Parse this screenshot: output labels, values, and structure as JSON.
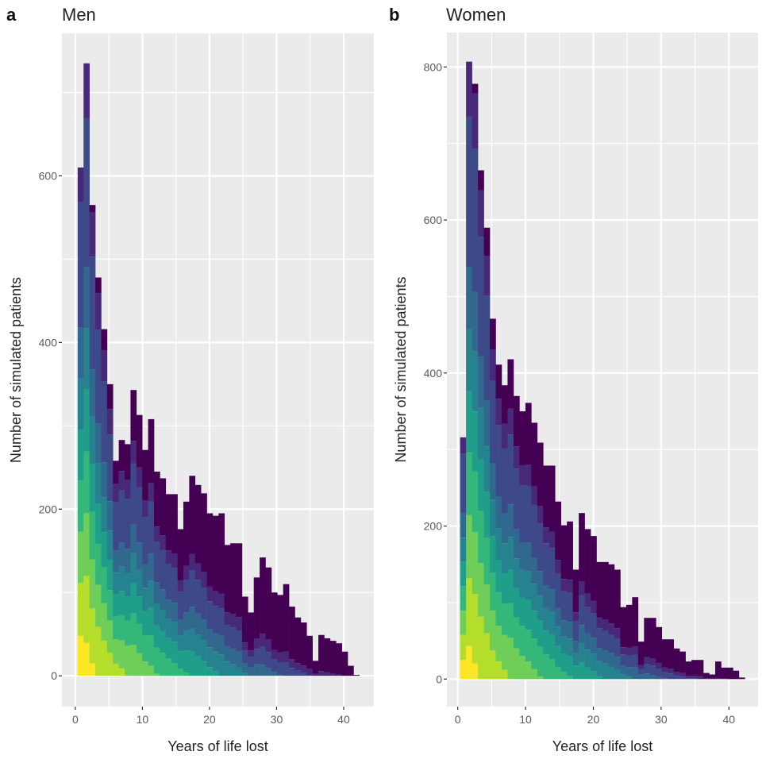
{
  "figure": {
    "background": "#ffffff",
    "panel_background": "#ebebeb",
    "grid_color": "#ffffff",
    "tick_color": "#333333"
  },
  "chart_data": [
    {
      "type": "bar",
      "subtype": "stacked-histogram",
      "panel_tag": "a",
      "title": "Men",
      "xlabel": "Years of life lost",
      "ylabel": "Number of simulated patients",
      "xlim": [
        -2,
        44.5
      ],
      "ylim": [
        -37,
        771
      ],
      "x_ticks": [
        0,
        10,
        20,
        30,
        40
      ],
      "x_tick_labels": [
        "0",
        "10",
        "20",
        "30",
        "40"
      ],
      "y_ticks": [
        0,
        200,
        400,
        600
      ],
      "y_tick_labels": [
        "0",
        "200",
        "400",
        "600"
      ],
      "grid": true,
      "bin_start": 0.35,
      "bin_width": 0.875,
      "totals": [
        610,
        735,
        565,
        478,
        416,
        350,
        258,
        283,
        278,
        343,
        313,
        271,
        308,
        245,
        237,
        218,
        218,
        176,
        209,
        240,
        229,
        219,
        195,
        192,
        195,
        157,
        159,
        159,
        95,
        76,
        118,
        142,
        130,
        100,
        97,
        110,
        83,
        70,
        64,
        48,
        18,
        49,
        45,
        42,
        39,
        29,
        12,
        1
      ],
      "fill_palette": [
        "#fde725",
        "#b5de2b",
        "#6ece58",
        "#35b779",
        "#1f9e89",
        "#26828e",
        "#31688e",
        "#3e4989",
        "#482878",
        "#440154"
      ]
    },
    {
      "type": "bar",
      "subtype": "stacked-histogram",
      "panel_tag": "b",
      "title": "Women",
      "xlabel": "Years of life lost",
      "ylabel": "Number of simulated patients",
      "xlim": [
        -1.6,
        44.3
      ],
      "ylim": [
        -36,
        845
      ],
      "x_ticks": [
        0,
        10,
        20,
        30,
        40
      ],
      "x_tick_labels": [
        "0",
        "10",
        "20",
        "30",
        "40"
      ],
      "y_ticks": [
        0,
        200,
        400,
        600,
        800
      ],
      "y_tick_labels": [
        "0",
        "200",
        "400",
        "600",
        "800"
      ],
      "grid": true,
      "bin_start": 0.35,
      "bin_width": 0.875,
      "totals": [
        316,
        807,
        778,
        665,
        590,
        471,
        411,
        384,
        418,
        370,
        350,
        361,
        335,
        309,
        279,
        279,
        232,
        201,
        206,
        143,
        217,
        196,
        187,
        153,
        153,
        150,
        143,
        94,
        97,
        107,
        49,
        80,
        80,
        68,
        52,
        52,
        40,
        36,
        23,
        25,
        25,
        8,
        6,
        23,
        15,
        15,
        11,
        2
      ],
      "fill_palette": [
        "#fde725",
        "#b5de2b",
        "#6ece58",
        "#35b779",
        "#1f9e89",
        "#26828e",
        "#31688e",
        "#3e4989",
        "#482878",
        "#440154"
      ]
    }
  ]
}
